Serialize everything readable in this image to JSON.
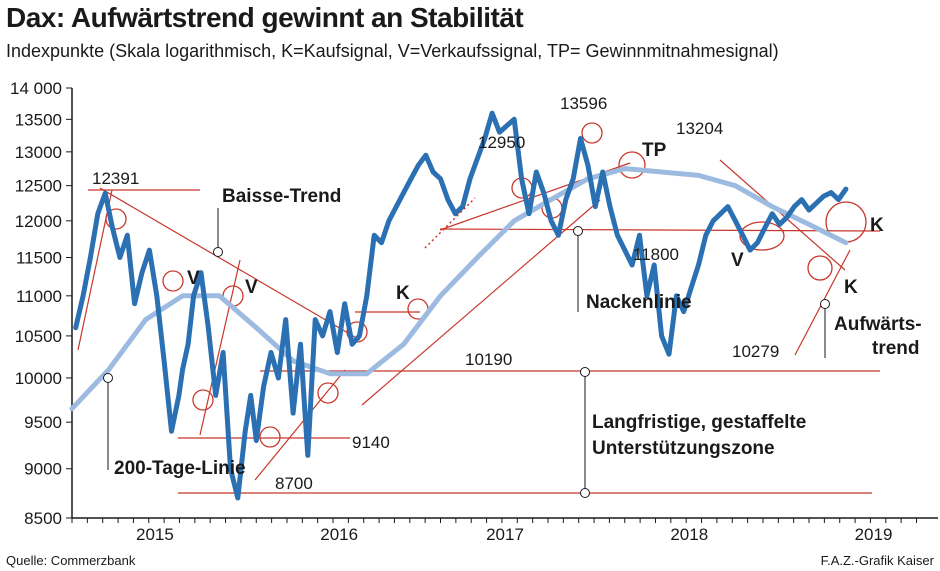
{
  "title": "Dax: Aufwärtstrend gewinnt an Stabilität",
  "subtitle": "Indexpunkte (Skala logarithmisch, K=Kaufsignal, V=Verkaufssignal, TP= Gewinnmitnahmesignal)",
  "source": "Quelle: Commerzbank",
  "credit": "F.A.Z.-Grafik Kaiser",
  "colors": {
    "index_line": "#2a70b2",
    "ma_line": "#9dbbe0",
    "support_lines": "#c8372b",
    "axis": "#1a1a1a"
  },
  "chart_data": {
    "type": "line",
    "yscale": "log",
    "ylim": [
      8500,
      14000
    ],
    "xlim": [
      2014.7,
      2019.4
    ],
    "yticks": [
      {
        "value": 8500,
        "label": "8500"
      },
      {
        "value": 9000,
        "label": "9000"
      },
      {
        "value": 9500,
        "label": "9500"
      },
      {
        "value": 10000,
        "label": "10000"
      },
      {
        "value": 10500,
        "label": "10500"
      },
      {
        "value": 11000,
        "label": "11000"
      },
      {
        "value": 11500,
        "label": "11500"
      },
      {
        "value": 12000,
        "label": "12000"
      },
      {
        "value": 12500,
        "label": "12500"
      },
      {
        "value": 13000,
        "label": "13000"
      },
      {
        "value": 13500,
        "label": "13500"
      },
      {
        "value": 14000,
        "label": "14 000"
      }
    ],
    "xticks": [
      {
        "value": 2015.15,
        "label": "2015"
      },
      {
        "value": 2016.15,
        "label": "2016"
      },
      {
        "value": 2017.05,
        "label": "2017"
      },
      {
        "value": 2018.05,
        "label": "2018"
      },
      {
        "value": 2019.05,
        "label": "2019"
      }
    ],
    "series": [
      {
        "name": "Dax",
        "x": [
          2014.72,
          2014.76,
          2014.8,
          2014.84,
          2014.88,
          2014.92,
          2014.96,
          2015.0,
          2015.04,
          2015.08,
          2015.12,
          2015.16,
          2015.2,
          2015.24,
          2015.28,
          2015.3,
          2015.33,
          2015.36,
          2015.4,
          2015.44,
          2015.48,
          2015.52,
          2015.56,
          2015.6,
          2015.64,
          2015.67,
          2015.7,
          2015.74,
          2015.78,
          2015.82,
          2015.86,
          2015.9,
          2015.94,
          2015.98,
          2016.02,
          2016.06,
          2016.1,
          2016.14,
          2016.18,
          2016.22,
          2016.26,
          2016.3,
          2016.34,
          2016.38,
          2016.42,
          2016.46,
          2016.5,
          2016.54,
          2016.58,
          2016.62,
          2016.66,
          2016.7,
          2016.74,
          2016.78,
          2016.82,
          2016.86,
          2016.9,
          2016.94,
          2016.98,
          2017.02,
          2017.06,
          2017.1,
          2017.14,
          2017.18,
          2017.22,
          2017.26,
          2017.3,
          2017.34,
          2017.38,
          2017.42,
          2017.46,
          2017.5,
          2017.54,
          2017.58,
          2017.62,
          2017.66,
          2017.7,
          2017.74,
          2017.78,
          2017.82,
          2017.86,
          2017.9,
          2017.94,
          2017.98,
          2018.02,
          2018.06,
          2018.1,
          2018.14,
          2018.18,
          2018.22,
          2018.26,
          2018.3,
          2018.34,
          2018.38,
          2018.42,
          2018.46,
          2018.5,
          2018.54,
          2018.58,
          2018.62,
          2018.66,
          2018.7,
          2018.74,
          2018.78,
          2018.82,
          2018.86,
          2018.9
        ],
        "values": [
          10600,
          11000,
          11500,
          12100,
          12391,
          11900,
          11500,
          11800,
          10900,
          11300,
          11600,
          11000,
          10200,
          9400,
          9800,
          10100,
          10400,
          11000,
          11300,
          10600,
          9800,
          10300,
          9000,
          8700,
          9400,
          9800,
          9300,
          9900,
          10300,
          10000,
          10700,
          9600,
          10400,
          9140,
          10700,
          10500,
          10800,
          10300,
          10900,
          10400,
          10500,
          11000,
          11800,
          11700,
          12000,
          12200,
          12400,
          12600,
          12800,
          12950,
          12700,
          12600,
          12300,
          12100,
          12200,
          12600,
          12900,
          13200,
          13596,
          13300,
          13400,
          13500,
          12600,
          12100,
          12700,
          12400,
          12000,
          11800,
          12300,
          12600,
          13204,
          12800,
          12200,
          12700,
          12200,
          11800,
          11600,
          11400,
          11800,
          11000,
          11400,
          10500,
          10279,
          11000,
          10800,
          11100,
          11400,
          11800,
          12000,
          12100,
          12200,
          12000,
          11800,
          11600,
          11700,
          11900,
          12100,
          11950,
          12050,
          12200,
          12300,
          12150,
          12250,
          12350,
          12400,
          12300,
          12450
        ]
      },
      {
        "name": "200-Tage-Linie",
        "x": [
          2014.7,
          2014.9,
          2015.1,
          2015.3,
          2015.5,
          2015.7,
          2015.9,
          2016.1,
          2016.3,
          2016.5,
          2016.7,
          2016.9,
          2017.1,
          2017.3,
          2017.5,
          2017.7,
          2017.9,
          2018.1,
          2018.3,
          2018.5,
          2018.7,
          2018.9
        ],
        "values": [
          9650,
          10100,
          10700,
          11000,
          11000,
          10600,
          10200,
          10050,
          10050,
          10400,
          11000,
          11500,
          12000,
          12300,
          12600,
          12750,
          12700,
          12650,
          12500,
          12200,
          11950,
          11700
        ]
      }
    ],
    "annotations": [
      {
        "text": "12391"
      },
      {
        "text": "Baisse-Trend"
      },
      {
        "text": "V"
      },
      {
        "text": "V"
      },
      {
        "text": "200-Tage-Linie"
      },
      {
        "text": "8700"
      },
      {
        "text": "9140"
      },
      {
        "text": "K"
      },
      {
        "text": "10190"
      },
      {
        "text": "12950"
      },
      {
        "text": "13596"
      },
      {
        "text": "TP"
      },
      {
        "text": "13204"
      },
      {
        "text": "11800"
      },
      {
        "text": "Nackenlinie"
      },
      {
        "text": "V"
      },
      {
        "text": "K"
      },
      {
        "text": "K"
      },
      {
        "text": "10279"
      },
      {
        "text": "Aufwärts-"
      },
      {
        "text": "trend"
      },
      {
        "text": "Langfristige, gestaffelte"
      },
      {
        "text": "Unterstützungszone"
      }
    ]
  }
}
